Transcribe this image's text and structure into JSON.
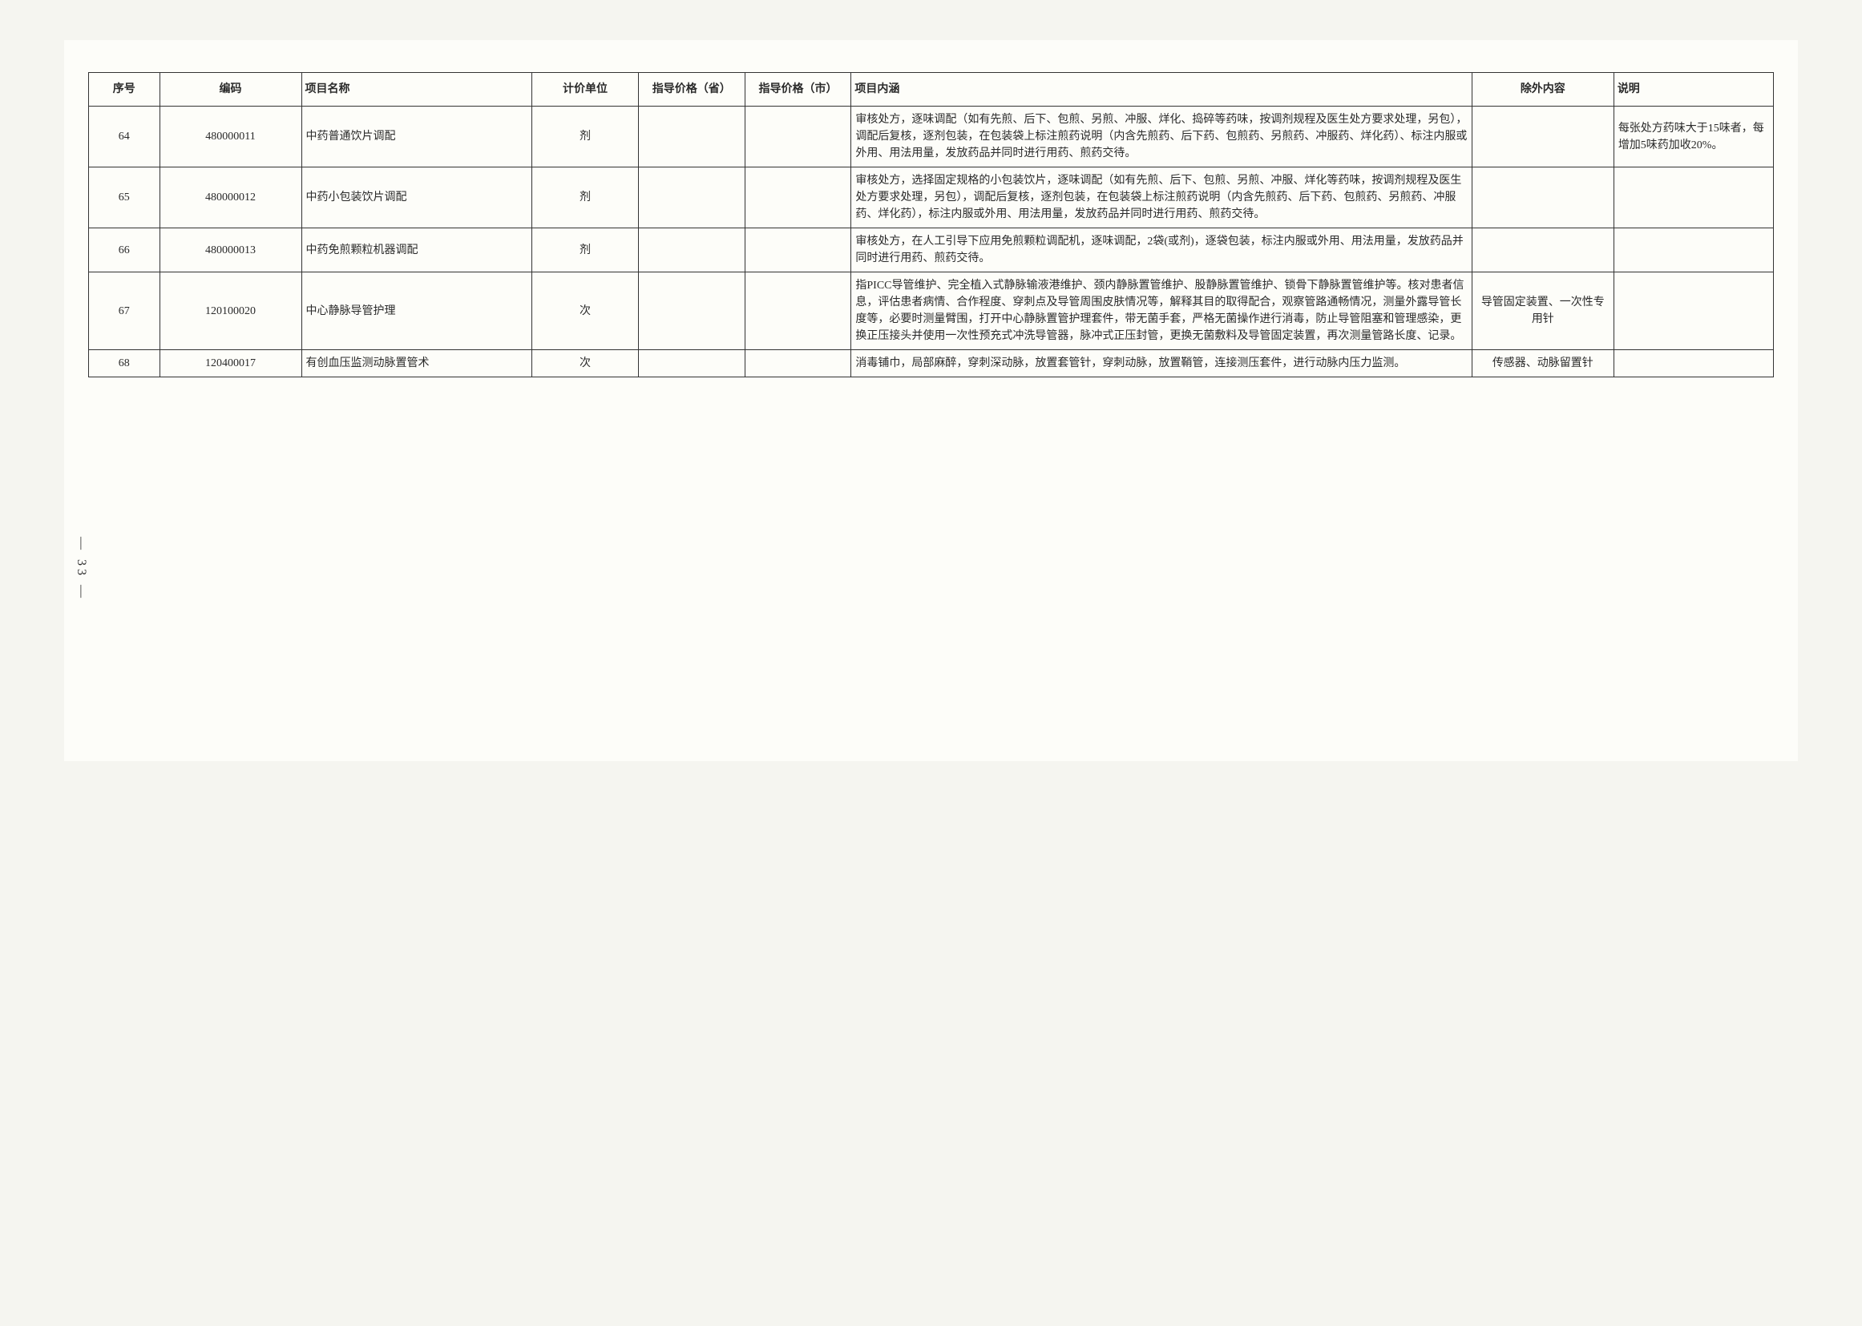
{
  "page_number": "— 33 —",
  "headers": {
    "seq": "序号",
    "code": "编码",
    "name": "项目名称",
    "unit": "计价单位",
    "price_province": "指导价格（省）",
    "price_city": "指导价格（市）",
    "content": "项目内涵",
    "exclude": "除外内容",
    "remark": "说明"
  },
  "rows": [
    {
      "seq": "64",
      "code": "480000011",
      "name": "中药普通饮片调配",
      "unit": "剂",
      "price_province": "",
      "price_city": "",
      "content": "审核处方，逐味调配（如有先煎、后下、包煎、另煎、冲服、烊化、捣碎等药味，按调剂规程及医生处方要求处理，另包），调配后复核，逐剂包装，在包装袋上标注煎药说明（内含先煎药、后下药、包煎药、另煎药、冲服药、烊化药）、标注内服或外用、用法用量，发放药品并同时进行用药、煎药交待。",
      "exclude": "",
      "remark": "每张处方药味大于15味者，每增加5味药加收20%。"
    },
    {
      "seq": "65",
      "code": "480000012",
      "name": "中药小包装饮片调配",
      "unit": "剂",
      "price_province": "",
      "price_city": "",
      "content": "审核处方，选择固定规格的小包装饮片，逐味调配（如有先煎、后下、包煎、另煎、冲服、烊化等药味，按调剂规程及医生处方要求处理，另包），调配后复核，逐剂包装，在包装袋上标注煎药说明（内含先煎药、后下药、包煎药、另煎药、冲服药、烊化药），标注内服或外用、用法用量，发放药品并同时进行用药、煎药交待。",
      "exclude": "",
      "remark": ""
    },
    {
      "seq": "66",
      "code": "480000013",
      "name": "中药免煎颗粒机器调配",
      "unit": "剂",
      "price_province": "",
      "price_city": "",
      "content": "审核处方，在人工引导下应用免煎颗粒调配机，逐味调配，2袋(或剂)，逐袋包装，标注内服或外用、用法用量，发放药品并同时进行用药、煎药交待。",
      "exclude": "",
      "remark": ""
    },
    {
      "seq": "67",
      "code": "120100020",
      "name": "中心静脉导管护理",
      "unit": "次",
      "price_province": "",
      "price_city": "",
      "content": "指PICC导管维护、完全植入式静脉输液港维护、颈内静脉置管维护、股静脉置管维护、锁骨下静脉置管维护等。核对患者信息，评估患者病情、合作程度、穿刺点及导管周围皮肤情况等，解释其目的取得配合，观察管路通畅情况，测量外露导管长度等，必要时测量臂围，打开中心静脉置管护理套件，带无菌手套，严格无菌操作进行消毒，防止导管阻塞和管理感染，更换正压接头并使用一次性预充式冲洗导管器，脉冲式正压封管，更换无菌敷料及导管固定装置，再次测量管路长度、记录。",
      "exclude": "导管固定装置、一次性专用针",
      "remark": ""
    },
    {
      "seq": "68",
      "code": "120400017",
      "name": "有创血压监测动脉置管术",
      "unit": "次",
      "price_province": "",
      "price_city": "",
      "content": "消毒铺巾，局部麻醉，穿刺深动脉，放置套管针，穿刺动脉，放置鞘管，连接测压套件，进行动脉内压力监测。",
      "exclude": "传感器、动脉留置针",
      "remark": ""
    }
  ]
}
